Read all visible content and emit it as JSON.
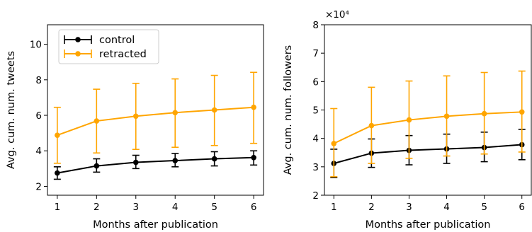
{
  "chart_data": [
    {
      "type": "line",
      "xlabel": "Months after publication",
      "ylabel": "Avg. cum. num. tweets",
      "x": [
        1,
        2,
        3,
        4,
        5,
        6
      ],
      "xticks": [
        "1",
        "2",
        "3",
        "4",
        "5",
        "6"
      ],
      "xlim": [
        0.75,
        6.25
      ],
      "ylim": [
        1.5,
        11.1
      ],
      "yticks": [
        "2",
        "4",
        "6",
        "8",
        "10"
      ],
      "y_multiplier_label": "",
      "legend": "top-left",
      "error_bars": true,
      "series": [
        {
          "name": "control",
          "color": "#000000",
          "values": [
            2.75,
            3.15,
            3.35,
            3.45,
            3.55,
            3.62
          ],
          "lower": [
            2.4,
            2.8,
            3.0,
            3.1,
            3.15,
            3.2
          ],
          "upper": [
            3.1,
            3.55,
            3.75,
            3.85,
            3.95,
            4.0
          ]
        },
        {
          "name": "retracted",
          "color": "#FFA500",
          "values": [
            4.88,
            5.68,
            5.95,
            6.15,
            6.3,
            6.45
          ],
          "lower": [
            3.3,
            3.88,
            4.08,
            4.2,
            4.3,
            4.42
          ],
          "upper": [
            6.45,
            7.47,
            7.8,
            8.05,
            8.25,
            8.42
          ]
        }
      ]
    },
    {
      "type": "line",
      "xlabel": "Months after publication",
      "ylabel": "Avg. cum. num. followers",
      "x": [
        1,
        2,
        3,
        4,
        5,
        6
      ],
      "xticks": [
        "1",
        "2",
        "3",
        "4",
        "5",
        "6"
      ],
      "xlim": [
        0.75,
        6.25
      ],
      "ylim": [
        2,
        8
      ],
      "yticks": [
        "2",
        "3",
        "4",
        "5",
        "6",
        "7",
        "8"
      ],
      "y_multiplier_label": "×10⁴",
      "legend": "",
      "error_bars": true,
      "series": [
        {
          "color": "#000000",
          "values": [
            3.12,
            3.48,
            3.58,
            3.63,
            3.68,
            3.78
          ],
          "lower": [
            2.62,
            2.98,
            3.07,
            3.12,
            3.18,
            3.25
          ],
          "upper": [
            3.62,
            3.98,
            4.1,
            4.15,
            4.22,
            4.32
          ]
        },
        {
          "color": "#FFA500",
          "values": [
            3.82,
            4.45,
            4.65,
            4.78,
            4.87,
            4.93
          ],
          "lower": [
            2.65,
            3.12,
            3.3,
            3.38,
            3.45,
            3.52
          ],
          "upper": [
            5.05,
            5.8,
            6.02,
            6.2,
            6.32,
            6.37
          ]
        }
      ]
    }
  ]
}
